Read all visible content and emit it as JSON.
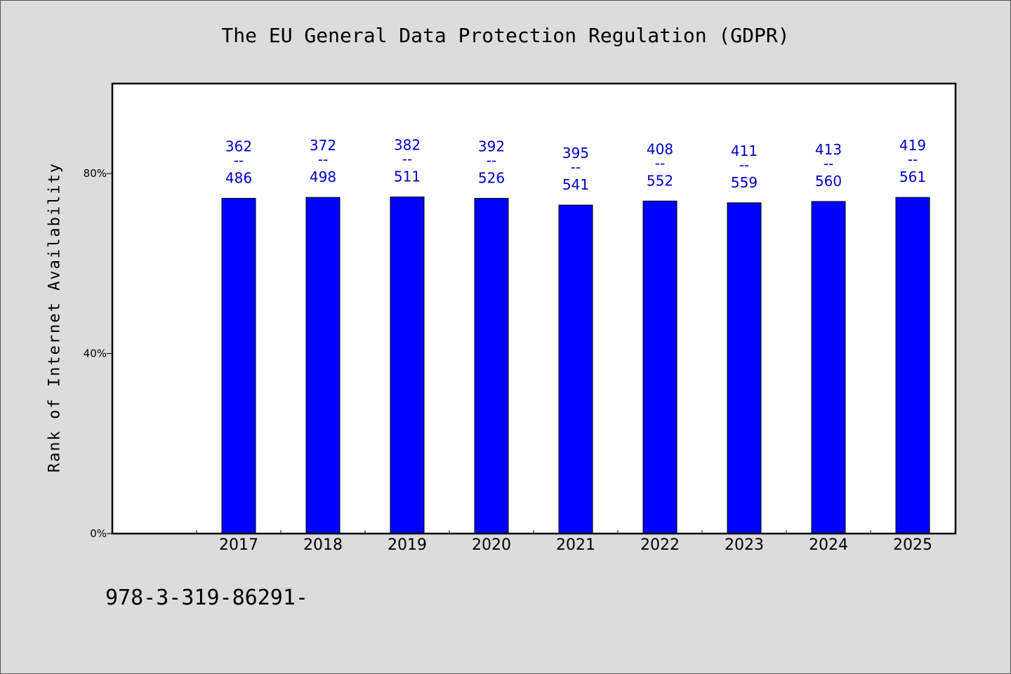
{
  "chart_data": {
    "type": "bar",
    "title": "The EU General Data Protection Regulation (GDPR)",
    "xlabel": "",
    "ylabel": "Rank of Internet Availability",
    "ylim": [
      0,
      1
    ],
    "yticks": [
      0,
      0.4,
      0.8
    ],
    "ytick_labels": [
      "0%",
      "40%",
      "80%"
    ],
    "categories": [
      "2017",
      "2018",
      "2019",
      "2020",
      "2021",
      "2022",
      "2023",
      "2024",
      "2025"
    ],
    "numerators": [
      362,
      372,
      382,
      392,
      395,
      408,
      411,
      413,
      419
    ],
    "denominators": [
      486,
      498,
      511,
      526,
      541,
      552,
      559,
      560,
      561
    ],
    "values": [
      0.745,
      0.747,
      0.748,
      0.745,
      0.73,
      0.739,
      0.735,
      0.738,
      0.747
    ],
    "label_separator": "--",
    "bar_color": "#0000ff",
    "label_color": "#0000cc",
    "grid": false,
    "legend": "none"
  },
  "footnote": "978-3-319-86291-"
}
